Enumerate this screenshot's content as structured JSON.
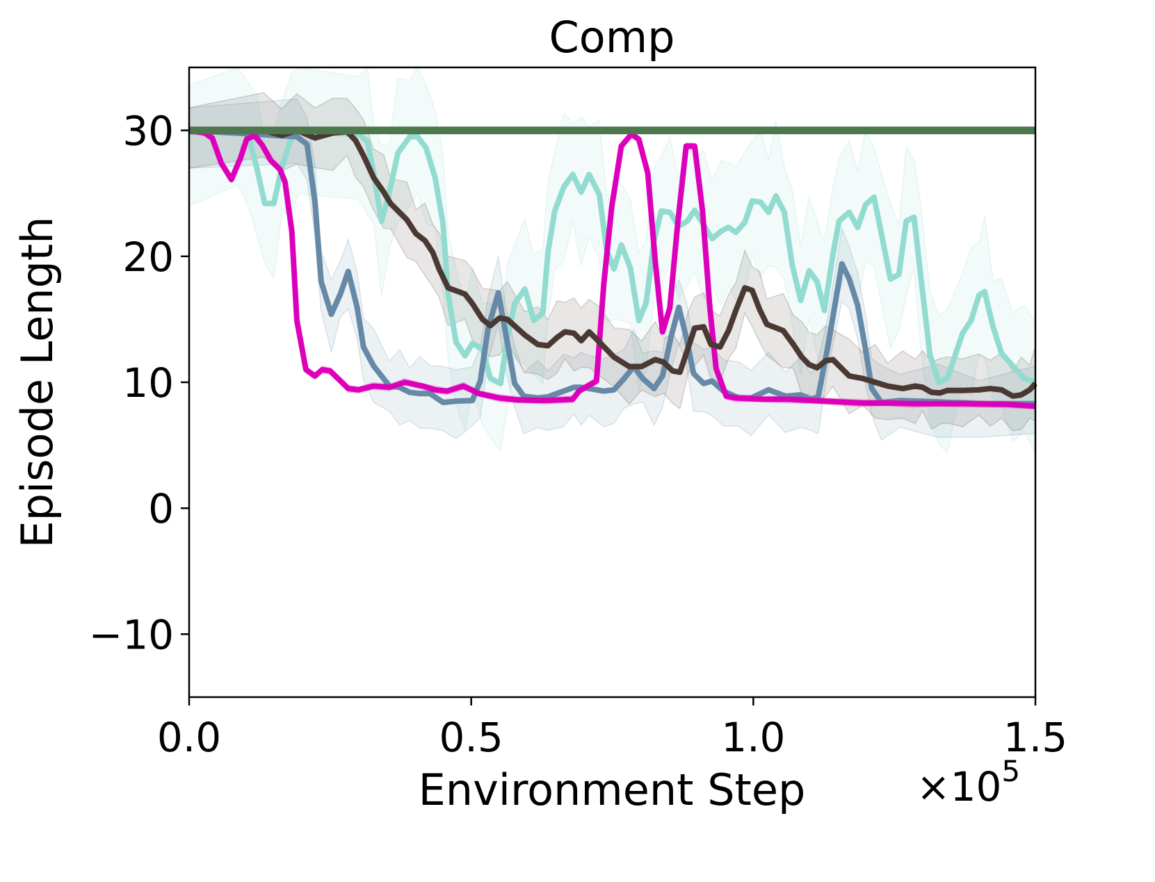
{
  "chart_data": {
    "type": "line",
    "title": "Comp",
    "xlabel": "Environment Step",
    "ylabel": "Episode Length",
    "x_multiplier_label": "×10",
    "x_multiplier_exponent": "5",
    "xlim": [
      0,
      1.5
    ],
    "ylim": [
      -15,
      35
    ],
    "x_ticks": [
      0.0,
      0.5,
      1.0,
      1.5
    ],
    "x_tick_labels": [
      "0.0",
      "0.5",
      "1.0",
      "1.5"
    ],
    "y_ticks": [
      -10,
      0,
      10,
      20,
      30
    ],
    "y_tick_labels": [
      "−10",
      "0",
      "10",
      "20",
      "30"
    ],
    "grid": false,
    "legend": "none",
    "series": [
      {
        "color": "#92dbd0",
        "band_halfwidth": 6,
        "x": [
          0,
          0.086,
          0.105,
          0.12,
          0.134,
          0.15,
          0.164,
          0.182,
          0.195,
          0.3,
          0.316,
          0.327,
          0.341,
          0.355,
          0.37,
          0.391,
          0.405,
          0.42,
          0.436,
          0.45,
          0.459,
          0.473,
          0.489,
          0.502,
          0.52,
          0.534,
          0.552,
          0.564,
          0.577,
          0.595,
          0.611,
          0.627,
          0.636,
          0.648,
          0.664,
          0.68,
          0.695,
          0.709,
          0.727,
          0.74,
          0.753,
          0.766,
          0.782,
          0.797,
          0.81,
          0.824,
          0.837,
          0.852,
          0.868,
          0.883,
          0.896,
          0.912,
          0.927,
          0.943,
          0.956,
          0.969,
          0.985,
          0.998,
          1.013,
          1.027,
          1.04,
          1.055,
          1.069,
          1.084,
          1.099,
          1.113,
          1.126,
          1.141,
          1.152,
          1.17,
          1.185,
          1.199,
          1.214,
          1.243,
          1.258,
          1.271,
          1.285,
          1.296,
          1.313,
          1.329,
          1.344,
          1.371,
          1.386,
          1.4,
          1.41,
          1.425,
          1.44,
          1.46,
          1.48,
          1.5
        ],
        "y": [
          30,
          29.9,
          29.6,
          27.0,
          24.2,
          24.2,
          27.0,
          29.5,
          29.9,
          29.7,
          29.1,
          26.6,
          22.8,
          25.1,
          28.2,
          29.5,
          29.5,
          28.6,
          26.25,
          22.6,
          17.0,
          13.2,
          12.1,
          13.1,
          12.6,
          10.3,
          9.9,
          13.55,
          16.25,
          17.4,
          14.9,
          15.5,
          20.3,
          23.6,
          25.5,
          26.5,
          25.1,
          26.5,
          24.9,
          20.5,
          19.0,
          20.9,
          19.1,
          14.9,
          16.3,
          21.25,
          23.6,
          23.5,
          22.4,
          22.8,
          23.65,
          22.5,
          21.4,
          22.0,
          22.3,
          21.9,
          22.7,
          24.4,
          24.3,
          23.5,
          24.8,
          23.5,
          19.3,
          16.5,
          18.85,
          18.0,
          15.7,
          20.1,
          22.8,
          23.5,
          22.3,
          24.1,
          24.7,
          18.2,
          18.55,
          22.8,
          23.1,
          18.75,
          12.2,
          10.0,
          10.3,
          13.9,
          14.9,
          16.9,
          17.2,
          14.4,
          12.3,
          11.3,
          10.3,
          10.0
        ]
      },
      {
        "color": "#6589a6",
        "band_halfwidth": 3,
        "x": [
          0,
          0.191,
          0.209,
          0.223,
          0.234,
          0.252,
          0.268,
          0.282,
          0.298,
          0.309,
          0.327,
          0.355,
          0.373,
          0.391,
          0.409,
          0.427,
          0.45,
          0.473,
          0.502,
          0.516,
          0.53,
          0.548,
          0.561,
          0.577,
          0.593,
          0.618,
          0.636,
          0.664,
          0.682,
          0.695,
          0.709,
          0.735,
          0.753,
          0.771,
          0.788,
          0.804,
          0.824,
          0.839,
          0.855,
          0.868,
          0.881,
          0.894,
          0.912,
          0.927,
          0.947,
          0.974,
          0.996,
          1.027,
          1.057,
          1.084,
          1.102,
          1.115,
          1.132,
          1.157,
          1.17,
          1.185,
          1.199,
          1.21,
          1.227,
          1.26,
          1.327,
          1.4,
          1.5
        ],
        "y": [
          30,
          29.5,
          28.9,
          24.3,
          18.0,
          15.4,
          17.0,
          18.8,
          15.9,
          12.8,
          11.3,
          9.7,
          9.6,
          9.2,
          9.1,
          9.1,
          8.4,
          8.5,
          8.55,
          10.1,
          14.3,
          17.1,
          13.9,
          9.9,
          8.9,
          8.75,
          8.85,
          9.3,
          9.6,
          9.6,
          9.5,
          9.3,
          9.4,
          10.3,
          11.25,
          10.3,
          9.5,
          10.5,
          13.75,
          15.95,
          13.6,
          10.7,
          9.9,
          10.1,
          9.3,
          8.75,
          8.75,
          9.4,
          8.9,
          9.0,
          8.65,
          8.85,
          12.8,
          19.4,
          18.2,
          16.1,
          12.6,
          9.5,
          8.4,
          8.55,
          8.45,
          8.3,
          8.3
        ]
      },
      {
        "color": "#dd00bb",
        "band_halfwidth": 0.3,
        "x": [
          0,
          0.027,
          0.041,
          0.057,
          0.075,
          0.091,
          0.102,
          0.116,
          0.13,
          0.145,
          0.161,
          0.17,
          0.182,
          0.191,
          0.207,
          0.223,
          0.236,
          0.25,
          0.266,
          0.282,
          0.3,
          0.327,
          0.355,
          0.382,
          0.414,
          0.436,
          0.457,
          0.486,
          0.514,
          0.55,
          0.582,
          0.632,
          0.68,
          0.691,
          0.722,
          0.735,
          0.749,
          0.766,
          0.784,
          0.797,
          0.813,
          0.826,
          0.839,
          0.852,
          0.866,
          0.881,
          0.896,
          0.91,
          0.923,
          0.934,
          0.952,
          0.969,
          1.018,
          1.062,
          1.106,
          1.15,
          1.194,
          1.238,
          1.282,
          1.327,
          1.371,
          1.45,
          1.5
        ],
        "y": [
          30,
          29.8,
          29.4,
          27.4,
          26.1,
          27.8,
          29.3,
          29.6,
          28.8,
          27.6,
          26.9,
          25.9,
          22.0,
          14.9,
          11.0,
          10.5,
          11.0,
          10.9,
          10.2,
          9.5,
          9.4,
          9.7,
          9.6,
          10.0,
          9.7,
          9.4,
          9.3,
          9.7,
          9.1,
          8.75,
          8.6,
          8.55,
          8.65,
          9.3,
          10.1,
          17.8,
          23.9,
          28.75,
          29.7,
          29.3,
          26.6,
          19.7,
          14.0,
          15.9,
          22.6,
          28.75,
          28.75,
          23.6,
          15.9,
          11.1,
          8.9,
          8.75,
          8.65,
          8.65,
          8.55,
          8.45,
          8.35,
          8.35,
          8.3,
          8.3,
          8.3,
          8.25,
          8.1
        ]
      },
      {
        "color": "#4a3932",
        "band_halfwidth": 3,
        "x": [
          0,
          0.132,
          0.164,
          0.191,
          0.223,
          0.255,
          0.28,
          0.295,
          0.309,
          0.327,
          0.345,
          0.357,
          0.386,
          0.402,
          0.418,
          0.432,
          0.443,
          0.459,
          0.489,
          0.502,
          0.52,
          0.534,
          0.55,
          0.564,
          0.595,
          0.618,
          0.636,
          0.652,
          0.666,
          0.682,
          0.695,
          0.709,
          0.727,
          0.753,
          0.78,
          0.802,
          0.826,
          0.841,
          0.857,
          0.87,
          0.885,
          0.896,
          0.912,
          0.925,
          0.941,
          0.956,
          0.969,
          0.985,
          0.998,
          1.011,
          1.024,
          1.053,
          1.071,
          1.086,
          1.099,
          1.113,
          1.128,
          1.141,
          1.17,
          1.194,
          1.216,
          1.238,
          1.265,
          1.287,
          1.3,
          1.316,
          1.331,
          1.344,
          1.371,
          1.4,
          1.42,
          1.44,
          1.46,
          1.475,
          1.49,
          1.5
        ],
        "y": [
          30,
          30,
          29.6,
          30,
          29.4,
          29.8,
          29.9,
          29.2,
          28.0,
          26.25,
          25.1,
          24.2,
          22.9,
          21.8,
          21.25,
          20.3,
          19.0,
          17.5,
          17.0,
          16.25,
          15.0,
          14.5,
          15.1,
          15.0,
          13.75,
          13.0,
          12.9,
          13.55,
          14.0,
          13.9,
          13.3,
          14.0,
          13.2,
          12.0,
          11.25,
          11.25,
          11.8,
          11.6,
          10.9,
          10.8,
          12.8,
          14.3,
          14.4,
          13.0,
          12.8,
          14.1,
          15.7,
          17.5,
          17.3,
          15.8,
          14.6,
          14.1,
          13.0,
          12.0,
          11.4,
          11.15,
          11.7,
          11.8,
          10.5,
          10.3,
          10.0,
          9.7,
          9.5,
          9.7,
          9.6,
          9.2,
          9.15,
          9.35,
          9.35,
          9.4,
          9.5,
          9.4,
          8.9,
          9.0,
          9.4,
          9.9
        ]
      },
      {
        "color": "#4d774d",
        "band_halfwidth": 0,
        "x": [
          0,
          1.5
        ],
        "y": [
          30,
          30
        ]
      }
    ]
  }
}
